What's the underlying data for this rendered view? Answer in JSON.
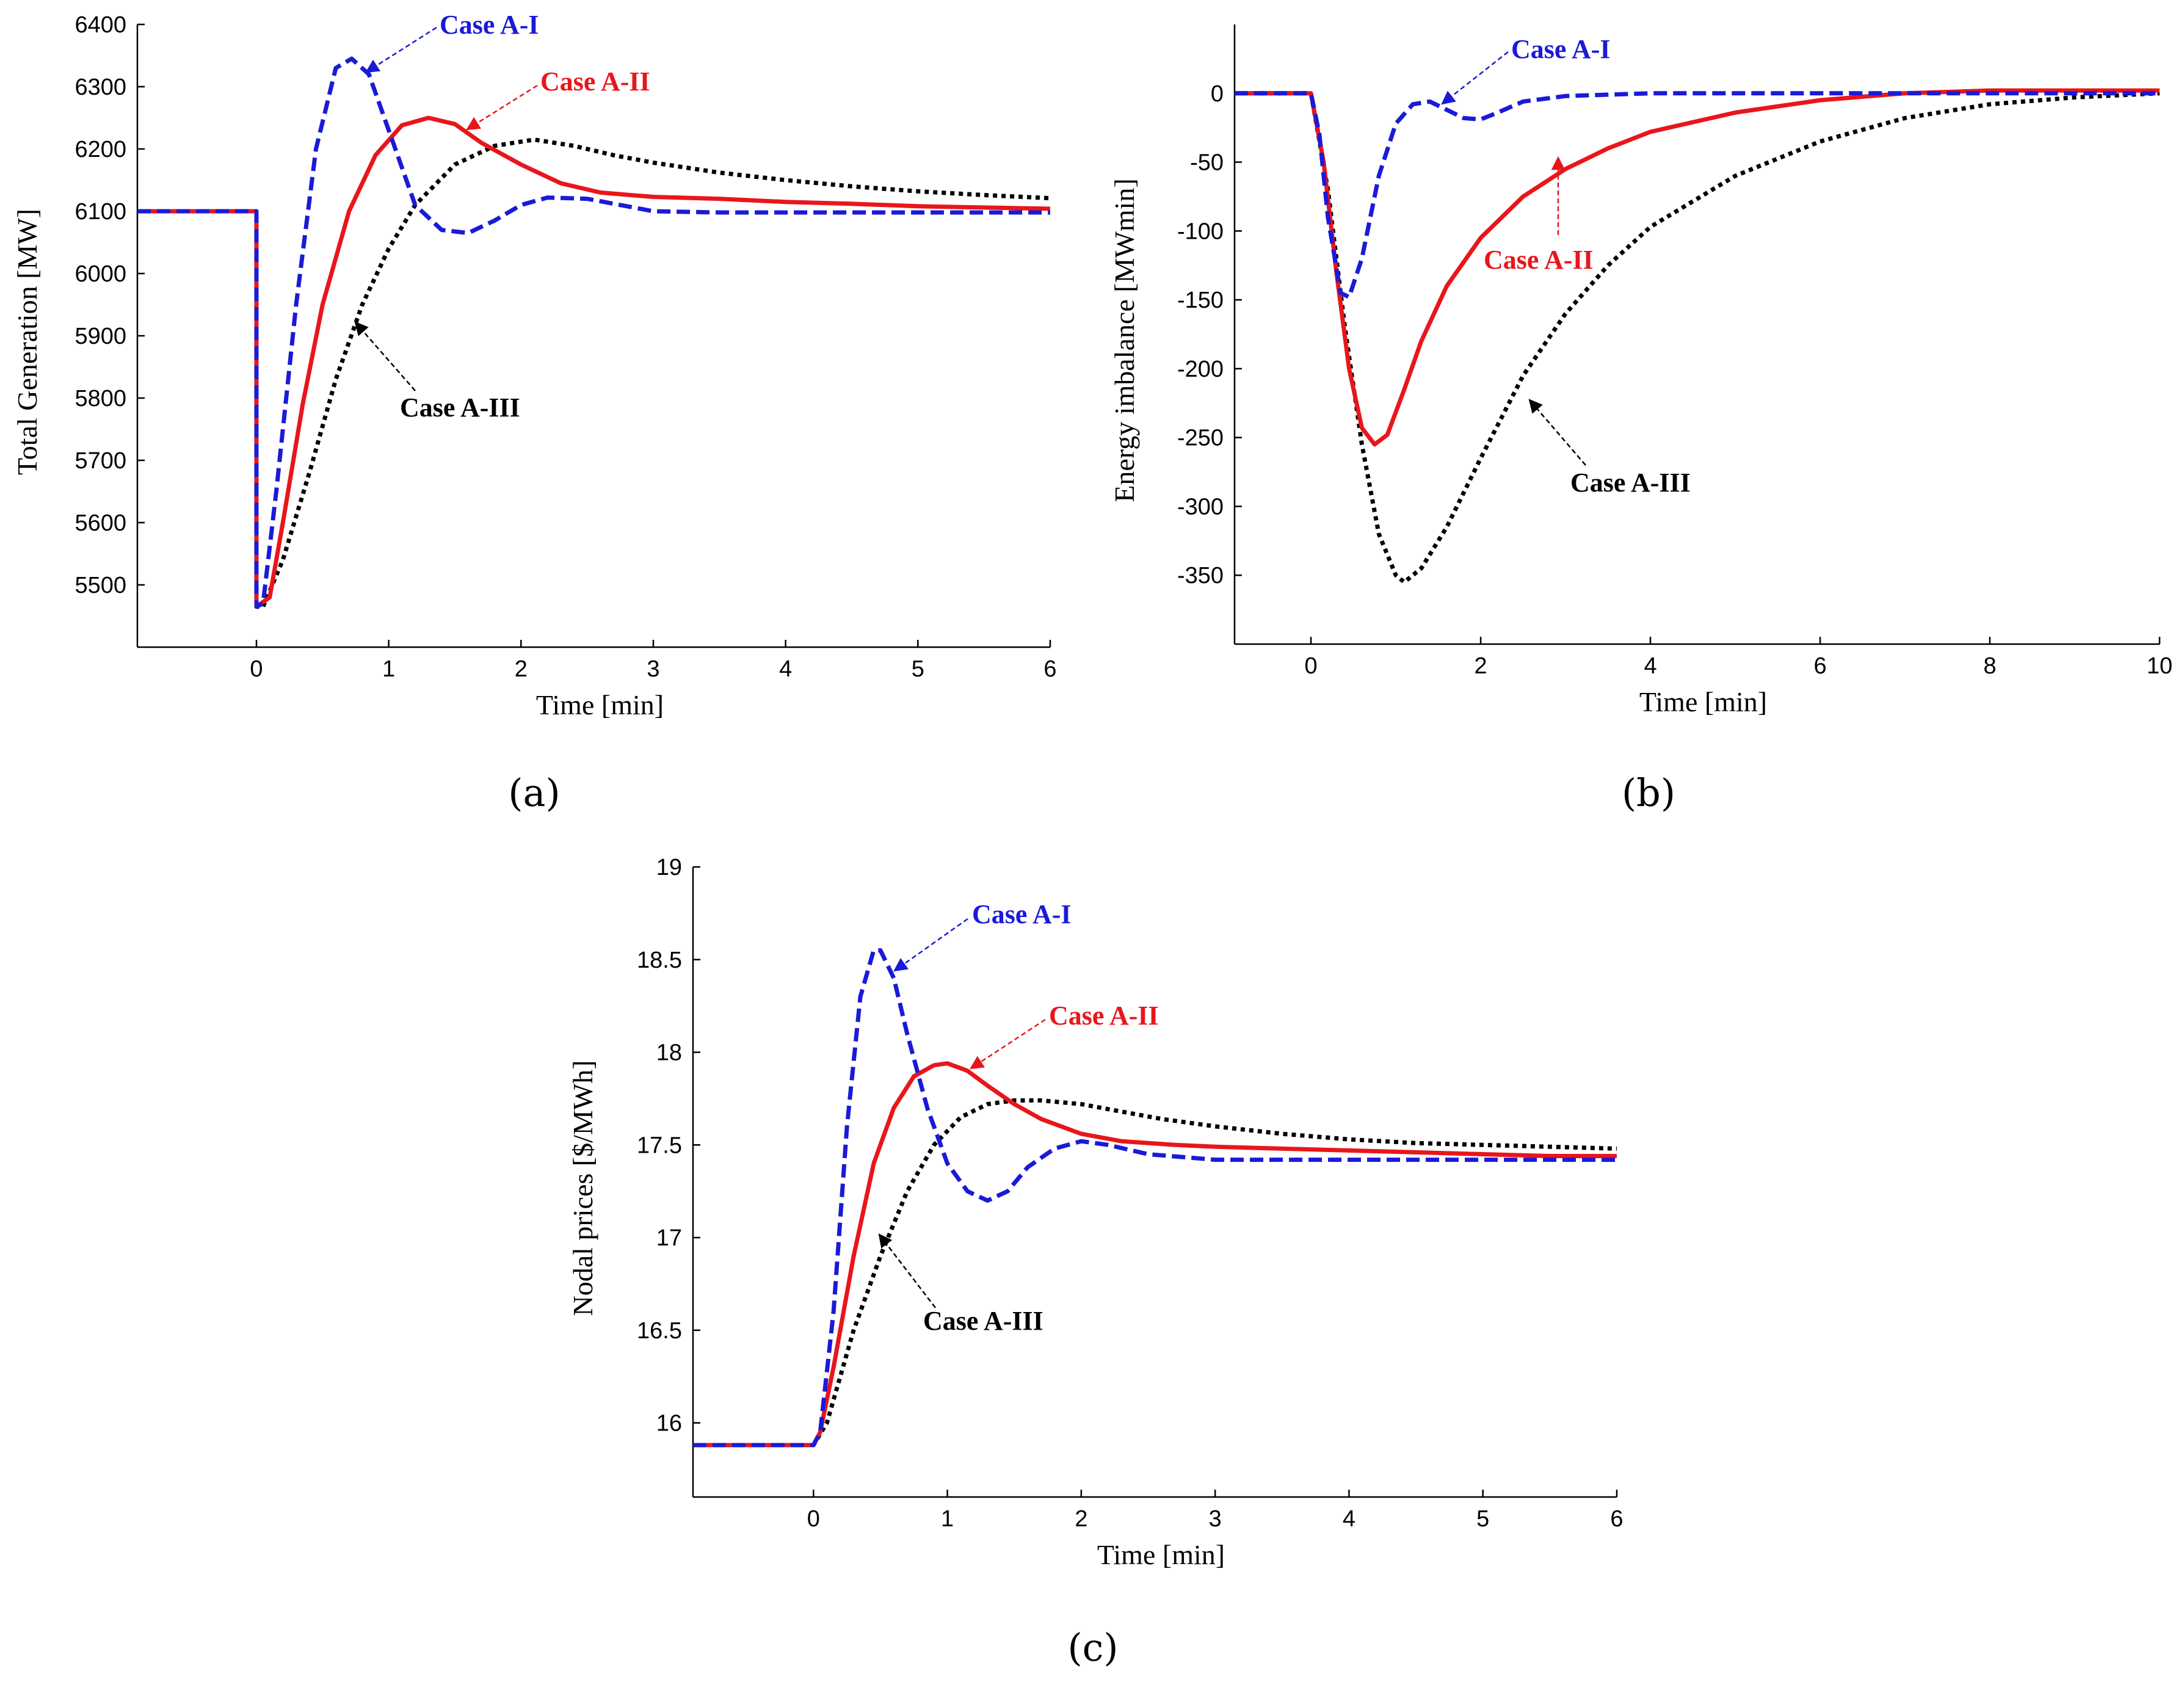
{
  "colors": {
    "case_a1": "#1a1ad8",
    "case_a2": "#e8161b",
    "case_a3": "#000000"
  },
  "chart_data": [
    {
      "id": "a",
      "type": "line",
      "panel_label": "(a)",
      "xlabel": "Time [min]",
      "ylabel": "Total Generation [MW]",
      "xlim": [
        -0.9,
        6
      ],
      "ylim": [
        5400,
        6400
      ],
      "xticks": [
        0,
        1,
        2,
        3,
        4,
        5,
        6
      ],
      "yticks": [
        5500,
        5600,
        5700,
        5800,
        5900,
        6000,
        6100,
        6200,
        6300,
        6400
      ],
      "grid": false,
      "series": [
        {
          "name": "Case A-I",
          "color": "#1a1ad8",
          "dash": "dashed",
          "x": [
            -0.9,
            0,
            0,
            0.05,
            0.15,
            0.3,
            0.45,
            0.6,
            0.72,
            0.85,
            1.0,
            1.2,
            1.4,
            1.6,
            1.8,
            2.0,
            2.2,
            2.5,
            3.0,
            3.5,
            4.0,
            5.0,
            6.0
          ],
          "y": [
            6100,
            6100,
            5465,
            5470,
            5650,
            5950,
            6200,
            6330,
            6345,
            6320,
            6230,
            6110,
            6070,
            6065,
            6085,
            6110,
            6122,
            6120,
            6100,
            6098,
            6098,
            6098,
            6098
          ]
        },
        {
          "name": "Case A-II",
          "color": "#e8161b",
          "dash": "solid",
          "x": [
            -0.9,
            0,
            0,
            0.1,
            0.2,
            0.35,
            0.5,
            0.7,
            0.9,
            1.1,
            1.3,
            1.5,
            1.7,
            2.0,
            2.3,
            2.6,
            3.0,
            3.5,
            4.0,
            4.5,
            5.0,
            5.5,
            6.0
          ],
          "y": [
            6100,
            6100,
            5465,
            5480,
            5600,
            5790,
            5950,
            6100,
            6190,
            6238,
            6250,
            6240,
            6210,
            6175,
            6145,
            6130,
            6123,
            6120,
            6115,
            6112,
            6108,
            6106,
            6104
          ]
        },
        {
          "name": "Case A-III",
          "color": "#000000",
          "dash": "dotted",
          "x": [
            -0.9,
            0,
            0,
            0.05,
            0.2,
            0.4,
            0.6,
            0.8,
            1.0,
            1.2,
            1.5,
            1.8,
            2.1,
            2.4,
            2.7,
            3.0,
            3.5,
            4.0,
            4.5,
            5.0,
            5.5,
            6.0
          ],
          "y": [
            6100,
            6100,
            5465,
            5465,
            5540,
            5680,
            5830,
            5950,
            6040,
            6110,
            6175,
            6205,
            6215,
            6205,
            6190,
            6178,
            6162,
            6150,
            6140,
            6132,
            6126,
            6121
          ]
        }
      ],
      "annotations": [
        {
          "text": "Case A-I",
          "series": "Case A-I"
        },
        {
          "text": "Case A-II",
          "series": "Case A-II"
        },
        {
          "text": "Case A-III",
          "series": "Case A-III"
        }
      ]
    },
    {
      "id": "b",
      "type": "line",
      "panel_label": "(b)",
      "xlabel": "Time [min]",
      "ylabel": "Energy imbalance [MWmin]",
      "xlim": [
        -0.9,
        10
      ],
      "ylim": [
        -400,
        50
      ],
      "xticks": [
        0,
        2,
        4,
        6,
        8,
        10
      ],
      "yticks": [
        -350,
        -300,
        -250,
        -200,
        -150,
        -100,
        -50,
        0
      ],
      "grid": false,
      "series": [
        {
          "name": "Case A-I",
          "color": "#1a1ad8",
          "dash": "dashed",
          "x": [
            -0.9,
            0,
            0.1,
            0.2,
            0.35,
            0.45,
            0.6,
            0.8,
            1.0,
            1.2,
            1.4,
            1.6,
            1.8,
            2.0,
            2.2,
            2.5,
            3.0,
            4.0,
            6.0,
            8.0,
            10.0
          ],
          "y": [
            0,
            0,
            -30,
            -90,
            -145,
            -148,
            -120,
            -60,
            -22,
            -8,
            -6,
            -12,
            -18,
            -19,
            -14,
            -6,
            -2,
            0,
            0,
            0,
            0
          ]
        },
        {
          "name": "Case A-II",
          "color": "#e8161b",
          "dash": "solid",
          "x": [
            -0.9,
            0,
            0.15,
            0.3,
            0.45,
            0.6,
            0.75,
            0.9,
            1.1,
            1.3,
            1.6,
            2.0,
            2.5,
            3.0,
            3.5,
            4.0,
            5.0,
            6.0,
            7.0,
            8.0,
            10.0
          ],
          "y": [
            0,
            0,
            -50,
            -130,
            -200,
            -243,
            -255,
            -248,
            -215,
            -180,
            -140,
            -105,
            -75,
            -55,
            -40,
            -28,
            -14,
            -5,
            0,
            2,
            2
          ]
        },
        {
          "name": "Case A-III",
          "color": "#000000",
          "dash": "dotted",
          "x": [
            -0.9,
            0,
            0.2,
            0.4,
            0.6,
            0.8,
            1.0,
            1.1,
            1.3,
            1.6,
            2.0,
            2.5,
            3.0,
            3.5,
            4.0,
            5.0,
            6.0,
            7.0,
            8.0,
            9.0,
            10.0
          ],
          "y": [
            0,
            0,
            -70,
            -170,
            -255,
            -320,
            -350,
            -355,
            -345,
            -315,
            -265,
            -205,
            -160,
            -125,
            -97,
            -60,
            -35,
            -18,
            -8,
            -3,
            0
          ]
        }
      ],
      "annotations": [
        {
          "text": "Case A-I",
          "series": "Case A-I"
        },
        {
          "text": "Case A-II",
          "series": "Case A-II"
        },
        {
          "text": "Case A-III",
          "series": "Case A-III"
        }
      ]
    },
    {
      "id": "c",
      "type": "line",
      "panel_label": "(c)",
      "xlabel": "Time [min]",
      "ylabel": "Nodal prices [$/MWh]",
      "xlim": [
        -0.9,
        6
      ],
      "ylim": [
        15.6,
        19
      ],
      "xticks": [
        0,
        1,
        2,
        3,
        4,
        5,
        6
      ],
      "yticks": [
        16,
        16.5,
        17,
        17.5,
        18,
        18.5,
        19
      ],
      "grid": false,
      "series": [
        {
          "name": "Case A-I",
          "color": "#1a1ad8",
          "dash": "dashed",
          "x": [
            -0.9,
            0,
            0.05,
            0.15,
            0.25,
            0.35,
            0.45,
            0.5,
            0.6,
            0.7,
            0.85,
            1.0,
            1.15,
            1.3,
            1.45,
            1.6,
            1.8,
            2.0,
            2.2,
            2.5,
            3.0,
            4.0,
            5.0,
            6.0
          ],
          "y": [
            15.88,
            15.88,
            15.95,
            16.6,
            17.6,
            18.3,
            18.55,
            18.55,
            18.4,
            18.1,
            17.7,
            17.4,
            17.25,
            17.2,
            17.25,
            17.38,
            17.48,
            17.52,
            17.5,
            17.45,
            17.42,
            17.42,
            17.42,
            17.42
          ]
        },
        {
          "name": "Case A-II",
          "color": "#e8161b",
          "dash": "solid",
          "x": [
            -0.9,
            0,
            0.05,
            0.15,
            0.3,
            0.45,
            0.6,
            0.75,
            0.9,
            1.0,
            1.15,
            1.3,
            1.5,
            1.7,
            2.0,
            2.3,
            2.7,
            3.0,
            3.5,
            4.0,
            4.5,
            5.0,
            5.5,
            6.0
          ],
          "y": [
            15.88,
            15.88,
            15.95,
            16.3,
            16.9,
            17.4,
            17.7,
            17.87,
            17.93,
            17.94,
            17.9,
            17.82,
            17.72,
            17.64,
            17.56,
            17.52,
            17.5,
            17.49,
            17.48,
            17.47,
            17.46,
            17.45,
            17.44,
            17.44
          ]
        },
        {
          "name": "Case A-III",
          "color": "#000000",
          "dash": "dotted",
          "x": [
            -0.9,
            0,
            0.1,
            0.3,
            0.5,
            0.7,
            0.9,
            1.1,
            1.3,
            1.5,
            1.7,
            2.0,
            2.3,
            2.6,
            3.0,
            3.5,
            4.0,
            4.5,
            5.0,
            5.5,
            6.0
          ],
          "y": [
            15.88,
            15.88,
            16.0,
            16.5,
            16.9,
            17.25,
            17.5,
            17.65,
            17.72,
            17.74,
            17.74,
            17.72,
            17.68,
            17.64,
            17.6,
            17.56,
            17.53,
            17.51,
            17.5,
            17.49,
            17.48
          ]
        }
      ],
      "annotations": [
        {
          "text": "Case A-I",
          "series": "Case A-I"
        },
        {
          "text": "Case A-II",
          "series": "Case A-II"
        },
        {
          "text": "Case A-III",
          "series": "Case A-III"
        }
      ]
    }
  ]
}
